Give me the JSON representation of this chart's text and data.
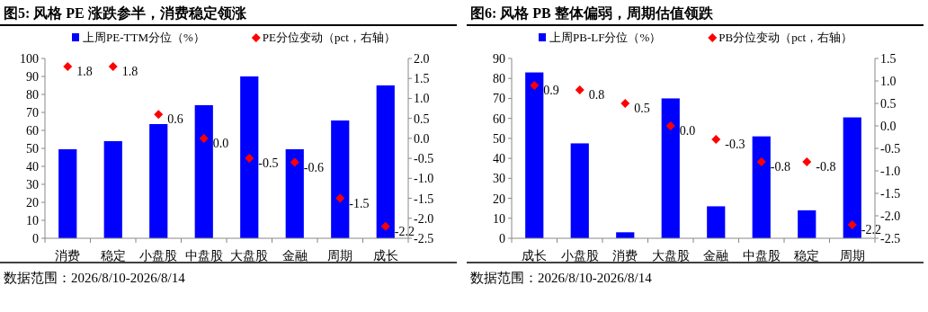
{
  "chart_data": [
    {
      "type": "bar",
      "title": "图5:  风格 PE 涨跌参半，消费稳定领涨",
      "categories": [
        "消费",
        "稳定",
        "小盘股",
        "中盘股",
        "大盘股",
        "金融",
        "周期",
        "成长"
      ],
      "ylim": [
        0,
        100
      ],
      "yticks": [
        0,
        10,
        20,
        30,
        40,
        50,
        60,
        70,
        80,
        90,
        100
      ],
      "y2lim": [
        -2.5,
        2.0
      ],
      "y2ticks": [
        {
          "value": -2.5,
          "label": "-2.5"
        },
        {
          "value": -2,
          "label": "-2.0"
        },
        {
          "value": -1.5,
          "label": "-1.5"
        },
        {
          "value": -1,
          "label": "-1.0"
        },
        {
          "value": -0.5,
          "label": "-0.5"
        },
        {
          "value": 0,
          "label": "0.0"
        },
        {
          "value": 0.5,
          "label": "0.5"
        },
        {
          "value": 1,
          "label": "1.0"
        },
        {
          "value": 1.5,
          "label": "1.5"
        },
        {
          "value": 2,
          "label": "2.0"
        }
      ],
      "legend": "top",
      "grid": false,
      "annotations": [
        "数据范围：2026/8/10-2026/8/14"
      ],
      "series": [
        {
          "name": "上周PE-TTM分位（%）",
          "color": "#0000ff",
          "values": [
            49.5,
            54,
            63.5,
            74,
            90,
            49.5,
            65.5,
            85
          ]
        },
        {
          "name": "PE分位变动（pct，右轴）",
          "type": "scatter",
          "axis": "y2",
          "marker": "diamond",
          "color": "#ff0000",
          "values": [
            1.8,
            1.8,
            0.6,
            0.0,
            -0.5,
            -0.6,
            -1.5,
            -2.2
          ],
          "value_labels": [
            "1.8",
            "1.8",
            "0.6",
            "0.0",
            "-0.5",
            "-0.6",
            "-1.5",
            "-2.2"
          ]
        }
      ]
    },
    {
      "type": "bar",
      "title": "图6:  风格 PB 整体偏弱，周期估值领跌",
      "categories": [
        "成长",
        "小盘股",
        "消费",
        "大盘股",
        "金融",
        "中盘股",
        "稳定",
        "周期"
      ],
      "ylim": [
        0,
        90
      ],
      "yticks": [
        0,
        10,
        20,
        30,
        40,
        50,
        60,
        70,
        80,
        90
      ],
      "y2lim": [
        -2.5,
        1.5
      ],
      "y2ticks": [
        {
          "value": -2.5,
          "label": "-2.5"
        },
        {
          "value": -2,
          "label": "-2.0"
        },
        {
          "value": -1.5,
          "label": "-1.5"
        },
        {
          "value": -1,
          "label": "-1.0"
        },
        {
          "value": -0.5,
          "label": "-0.5"
        },
        {
          "value": 0,
          "label": "0.0"
        },
        {
          "value": 0.5,
          "label": "0.5"
        },
        {
          "value": 1,
          "label": "1.0"
        },
        {
          "value": 1.5,
          "label": "1.5"
        }
      ],
      "legend": "top",
      "grid": false,
      "annotations": [
        "数据范围：2026/8/10-2026/8/14"
      ],
      "series": [
        {
          "name": "上周PB-LF分位（%）",
          "color": "#0000ff",
          "values": [
            83,
            47.5,
            3,
            70,
            16,
            51,
            14,
            60.5
          ]
        },
        {
          "name": "PB分位变动（pct，右轴）",
          "type": "scatter",
          "axis": "y2",
          "marker": "diamond",
          "color": "#ff0000",
          "values": [
            0.9,
            0.8,
            0.5,
            0.0,
            -0.3,
            -0.8,
            -0.8,
            -2.2
          ],
          "value_labels": [
            "0.9",
            "0.8",
            "0.5",
            "0.0",
            "-0.3",
            "-0.8",
            "-0.8",
            "-2.2"
          ]
        }
      ]
    }
  ]
}
